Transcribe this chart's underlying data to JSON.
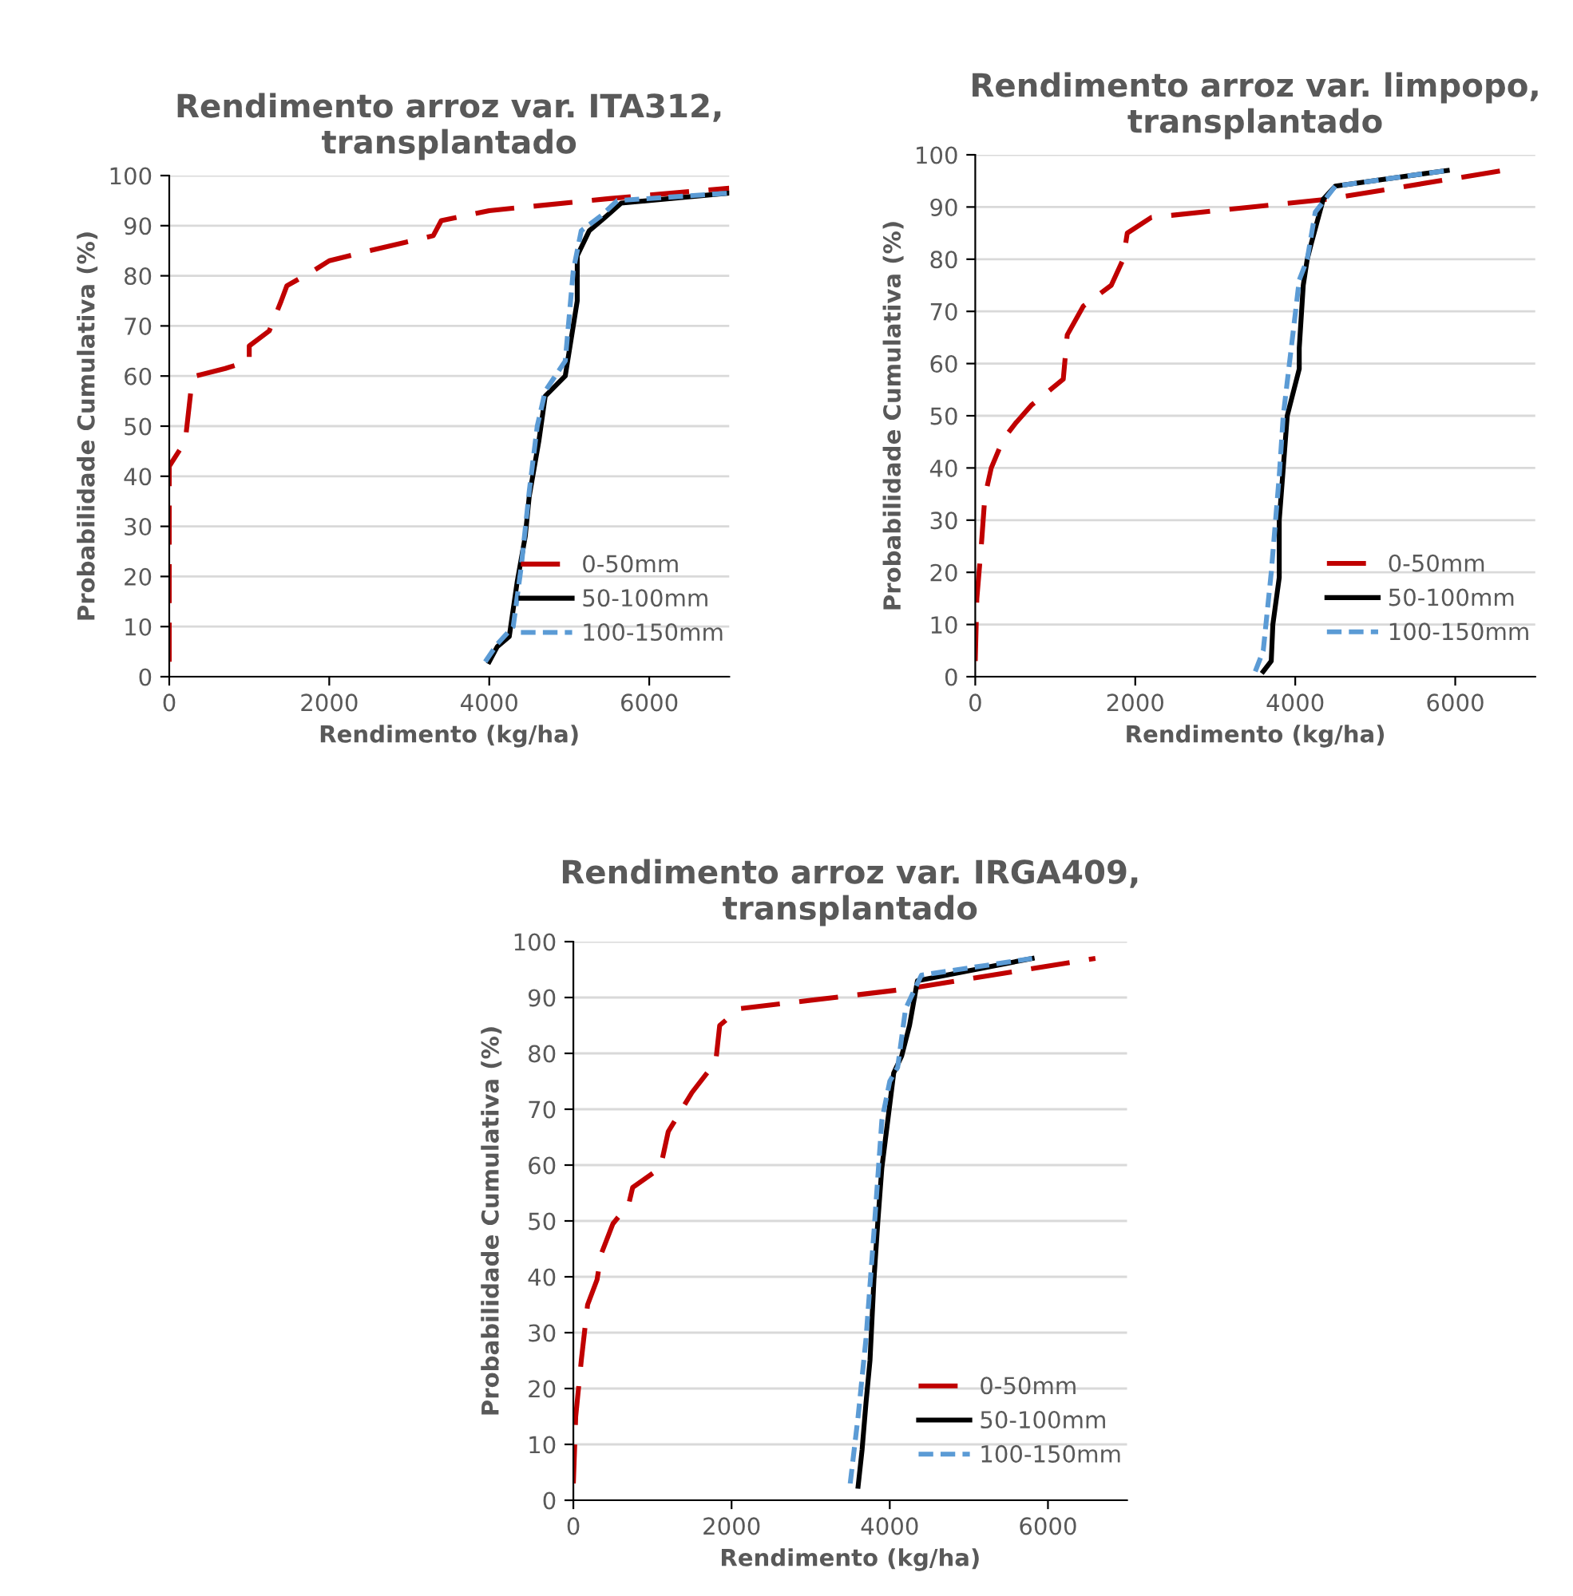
{
  "chart_data": [
    {
      "type": "line",
      "title": "Rendimento arroz var. ITA312,\ntransplantado",
      "xlabel": "Rendimento (kg/ha)",
      "ylabel": "Probabilidade Cumulativa (%)",
      "xlim": [
        0,
        7000
      ],
      "xticks": [
        0,
        2000,
        4000,
        6000
      ],
      "ylim": [
        0,
        100
      ],
      "yticks": [
        0,
        10,
        20,
        30,
        40,
        50,
        60,
        70,
        80,
        90,
        100
      ],
      "grid": "y",
      "legend": "bottom right",
      "marker": "none",
      "series": [
        {
          "name": "0-50mm",
          "color": "#c00000",
          "line_style": "dashed",
          "x": [
            0,
            0,
            200,
            270,
            330,
            700,
            1000,
            1000,
            1250,
            1400,
            1470,
            1800,
            2000,
            2500,
            3300,
            3400,
            4000,
            5500,
            7000
          ],
          "values": [
            3,
            42,
            47,
            57,
            60,
            61.5,
            63,
            66,
            69,
            75,
            78,
            81,
            83,
            85,
            88,
            91,
            93,
            95.4,
            97.5
          ]
        },
        {
          "name": "50-100mm",
          "color": "#000000",
          "line_style": "solid",
          "x": [
            4000,
            4100,
            4250,
            4350,
            4450,
            4500,
            4620,
            4700,
            4950,
            5100,
            5100,
            5250,
            5400,
            5650,
            7000
          ],
          "values": [
            3,
            6,
            8,
            19,
            28,
            36,
            47,
            56,
            60,
            75,
            84,
            89,
            91,
            94.5,
            96.5
          ]
        },
        {
          "name": "100-150mm",
          "color": "#5b9bd5",
          "line_style": "dotted",
          "x": [
            3950,
            4100,
            4300,
            4400,
            4500,
            4600,
            4700,
            4950,
            5050,
            5150,
            5400,
            5600,
            7000
          ],
          "values": [
            3,
            6.5,
            10,
            22,
            37,
            50,
            57,
            63,
            81,
            89,
            92,
            95,
            96.5
          ]
        }
      ]
    },
    {
      "type": "line",
      "title": "Rendimento arroz var. limpopo,\ntransplantado",
      "xlabel": "Rendimento (kg/ha)",
      "ylabel": "Probabilidade Cumulativa (%)",
      "xlim": [
        0,
        7000
      ],
      "xticks": [
        0,
        2000,
        4000,
        6000
      ],
      "ylim": [
        0,
        100
      ],
      "yticks": [
        0,
        10,
        20,
        30,
        40,
        50,
        60,
        70,
        80,
        90,
        100
      ],
      "grid": "y",
      "legend": "bottom right",
      "marker": "none",
      "series": [
        {
          "name": "0-50mm",
          "color": "#c00000",
          "line_style": "dashed",
          "x": [
            0,
            20,
            80,
            120,
            200,
            350,
            500,
            700,
            1100,
            1150,
            1350,
            1700,
            1850,
            1900,
            2200,
            4400,
            6600
          ],
          "values": [
            3,
            15,
            26,
            34.5,
            40,
            45.5,
            48.5,
            52,
            57,
            65.5,
            71,
            75,
            80,
            85,
            88,
            91.5,
            97
          ]
        },
        {
          "name": "50-100mm",
          "color": "#000000",
          "line_style": "solid",
          "x": [
            3600,
            3700,
            3720,
            3800,
            3800,
            3850,
            3900,
            4050,
            4050,
            4100,
            4150,
            4200,
            4350,
            4500,
            5900
          ],
          "values": [
            1,
            3,
            10,
            19,
            30,
            40,
            50,
            59,
            63,
            75,
            80,
            83,
            91.5,
            94,
            97
          ]
        },
        {
          "name": "100-150mm",
          "color": "#5b9bd5",
          "line_style": "dotted",
          "x": [
            3500,
            3600,
            3700,
            3800,
            3850,
            3950,
            4050,
            4150,
            4250,
            4500,
            5900
          ],
          "values": [
            1,
            5,
            20,
            38.5,
            50,
            63,
            76,
            80,
            89,
            94,
            97
          ]
        }
      ]
    },
    {
      "type": "line",
      "title": "Rendimento arroz var. IRGA409,\ntransplantado",
      "xlabel": "Rendimento (kg/ha)",
      "ylabel": "Probabilidade Cumulativa (%)",
      "xlim": [
        0,
        7000
      ],
      "xticks": [
        0,
        2000,
        4000,
        6000
      ],
      "ylim": [
        0,
        100
      ],
      "yticks": [
        0,
        10,
        20,
        30,
        40,
        50,
        60,
        70,
        80,
        90,
        100
      ],
      "grid": "y",
      "legend": "bottom right",
      "marker": "none",
      "series": [
        {
          "name": "0-50mm",
          "color": "#c00000",
          "line_style": "dashed",
          "x": [
            0,
            30,
            100,
            180,
            300,
            350,
            500,
            700,
            750,
            1100,
            1200,
            1500,
            1800,
            1850,
            2100,
            4200,
            6600
          ],
          "values": [
            3,
            15,
            25,
            35,
            39.5,
            44,
            49.5,
            53,
            56,
            59.5,
            66,
            73,
            78.5,
            85,
            88,
            91.5,
            97
          ]
        },
        {
          "name": "50-100mm",
          "color": "#000000",
          "line_style": "solid",
          "x": [
            3600,
            3650,
            3700,
            3750,
            3800,
            3850,
            3900,
            4050,
            4150,
            4250,
            4350,
            5800
          ],
          "values": [
            2.5,
            9,
            17.5,
            25,
            39.5,
            50,
            59.5,
            76.5,
            79.5,
            85,
            93,
            97
          ]
        },
        {
          "name": "100-150mm",
          "color": "#5b9bd5",
          "line_style": "dotted",
          "x": [
            3500,
            3600,
            3700,
            3800,
            3900,
            4000,
            4100,
            4200,
            4400,
            5800
          ],
          "values": [
            3,
            15,
            29,
            48,
            68,
            75,
            77.5,
            88,
            94,
            97
          ]
        }
      ]
    }
  ]
}
